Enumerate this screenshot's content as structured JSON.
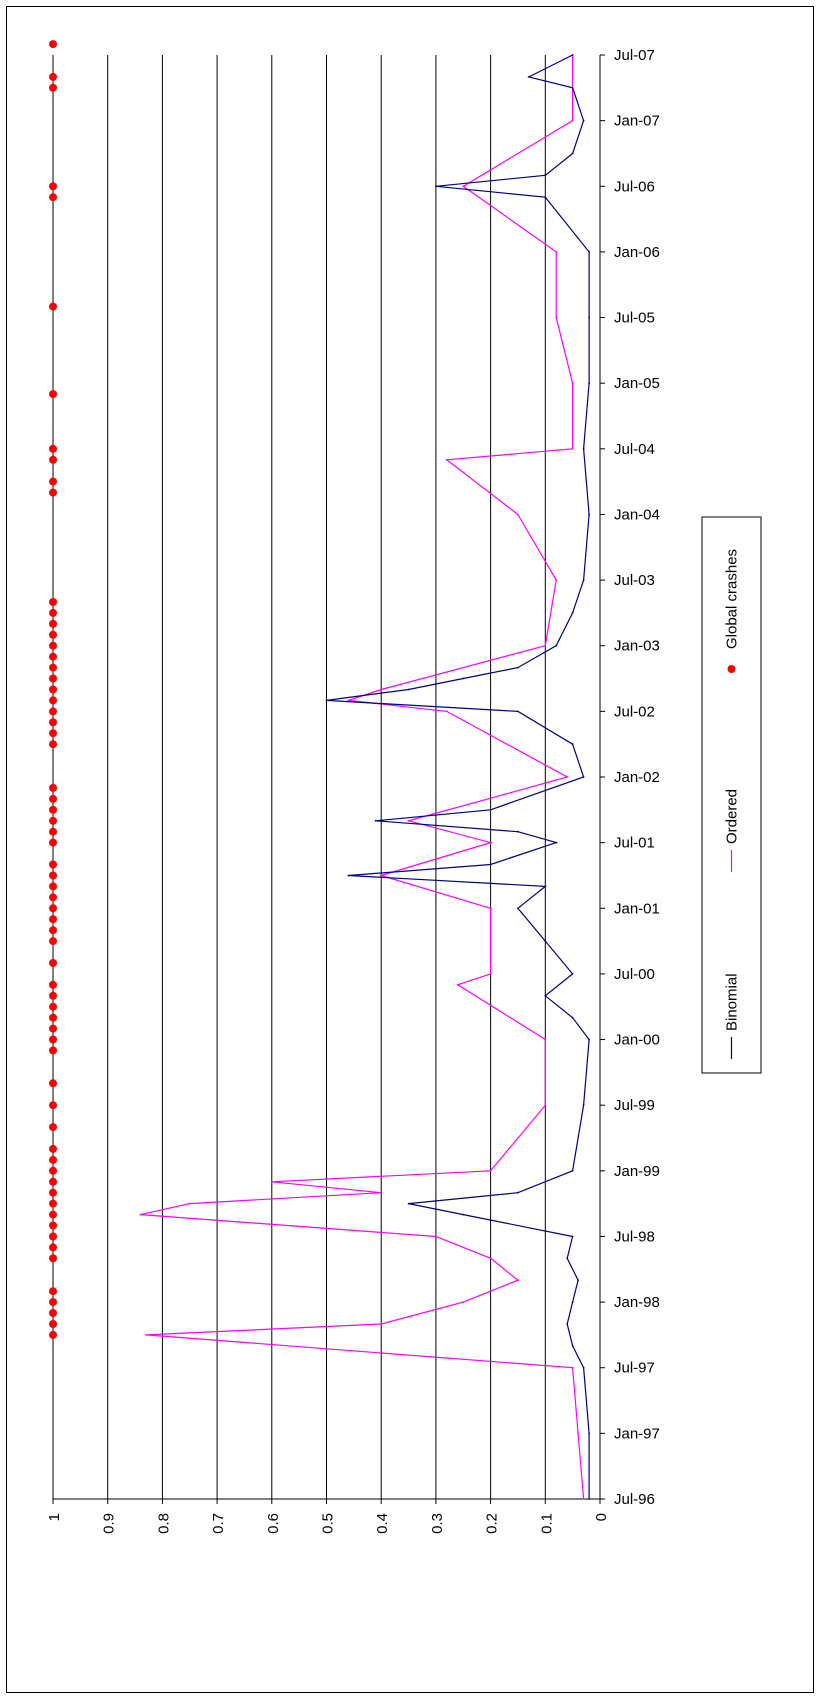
{
  "chart_data": {
    "type": "line",
    "orientation": "rotated-90",
    "title": "",
    "xlabel": "",
    "ylabel": "",
    "ylim": [
      0,
      1
    ],
    "y_ticks": [
      0,
      0.1,
      0.2,
      0.3,
      0.4,
      0.5,
      0.6,
      0.7,
      0.8,
      0.9,
      1
    ],
    "y_tick_labels": [
      "0",
      "0.1",
      "0.2",
      "0.3",
      "0.4",
      "0.5",
      "0.6",
      "0.7",
      "0.8",
      "0.9",
      "1"
    ],
    "x_tick_labels": [
      "Jul-96",
      "Jan-97",
      "Jul-97",
      "Jan-98",
      "Jul-98",
      "Jan-99",
      "Jul-99",
      "Jan-00",
      "Jul-00",
      "Jan-01",
      "Jul-01",
      "Jan-02",
      "Jul-02",
      "Jan-03",
      "Jul-03",
      "Jan-04",
      "Jul-04",
      "Jan-05",
      "Jul-05",
      "Jan-06",
      "Jul-06",
      "Jan-07",
      "Jul-07"
    ],
    "grid": true,
    "legend_position": "right",
    "colors": {
      "Binomial": "#000080",
      "Ordered": "#ff00ff",
      "Global crashes": "#ff0000"
    },
    "series": [
      {
        "name": "Binomial",
        "points": [
          [
            "Jul-96",
            0.02
          ],
          [
            "Jan-97",
            0.02
          ],
          [
            "Jul-97",
            0.03
          ],
          [
            "Sep-97",
            0.05
          ],
          [
            "Nov-97",
            0.06
          ],
          [
            "Jan-98",
            0.05
          ],
          [
            "Mar-98",
            0.04
          ],
          [
            "May-98",
            0.06
          ],
          [
            "Jul-98",
            0.05
          ],
          [
            "Sep-98",
            0.25
          ],
          [
            "Oct-98",
            0.35
          ],
          [
            "Nov-98",
            0.15
          ],
          [
            "Jan-99",
            0.05
          ],
          [
            "Jul-99",
            0.03
          ],
          [
            "Jan-00",
            0.02
          ],
          [
            "Mar-00",
            0.05
          ],
          [
            "May-00",
            0.1
          ],
          [
            "Jul-00",
            0.05
          ],
          [
            "Oct-00",
            0.1
          ],
          [
            "Jan-01",
            0.15
          ],
          [
            "Mar-01",
            0.1
          ],
          [
            "Apr-01",
            0.46
          ],
          [
            "May-01",
            0.2
          ],
          [
            "Jul-01",
            0.08
          ],
          [
            "Aug-01",
            0.15
          ],
          [
            "Sep-01",
            0.41
          ],
          [
            "Oct-01",
            0.2
          ],
          [
            "Jan-02",
            0.03
          ],
          [
            "Apr-02",
            0.05
          ],
          [
            "Jul-02",
            0.15
          ],
          [
            "Aug-02",
            0.5
          ],
          [
            "Sep-02",
            0.35
          ],
          [
            "Oct-02",
            0.25
          ],
          [
            "Nov-02",
            0.15
          ],
          [
            "Jan-03",
            0.08
          ],
          [
            "Apr-03",
            0.05
          ],
          [
            "Jul-03",
            0.03
          ],
          [
            "Jan-04",
            0.02
          ],
          [
            "Jul-04",
            0.03
          ],
          [
            "Jan-05",
            0.02
          ],
          [
            "Jul-05",
            0.02
          ],
          [
            "Jan-06",
            0.02
          ],
          [
            "Jun-06",
            0.1
          ],
          [
            "Jul-06",
            0.3
          ],
          [
            "Aug-06",
            0.1
          ],
          [
            "Oct-06",
            0.05
          ],
          [
            "Jan-07",
            0.03
          ],
          [
            "Apr-07",
            0.05
          ],
          [
            "May-07",
            0.13
          ],
          [
            "Jul-07",
            0.05
          ]
        ]
      },
      {
        "name": "Ordered",
        "points": [
          [
            "Jul-96",
            0.03
          ],
          [
            "Jan-97",
            0.04
          ],
          [
            "Jul-97",
            0.05
          ],
          [
            "Oct-97",
            0.83
          ],
          [
            "Nov-97",
            0.4
          ],
          [
            "Jan-98",
            0.25
          ],
          [
            "Mar-98",
            0.15
          ],
          [
            "May-98",
            0.2
          ],
          [
            "Jul-98",
            0.3
          ],
          [
            "Sep-98",
            0.84
          ],
          [
            "Oct-98",
            0.75
          ],
          [
            "Nov-98",
            0.4
          ],
          [
            "Dec-98",
            0.6
          ],
          [
            "Jan-99",
            0.2
          ],
          [
            "Jul-99",
            0.1
          ],
          [
            "Jan-00",
            0.1
          ],
          [
            "Jun-00",
            0.26
          ],
          [
            "Jul-00",
            0.2
          ],
          [
            "Jan-01",
            0.2
          ],
          [
            "Apr-01",
            0.4
          ],
          [
            "Jul-01",
            0.2
          ],
          [
            "Sep-01",
            0.35
          ],
          [
            "Jan-02",
            0.06
          ],
          [
            "Jul-02",
            0.28
          ],
          [
            "Aug-02",
            0.46
          ],
          [
            "Sep-02",
            0.4
          ],
          [
            "Jan-03",
            0.1
          ],
          [
            "Jul-03",
            0.08
          ],
          [
            "Jan-04",
            0.15
          ],
          [
            "Jun-04",
            0.28
          ],
          [
            "Jul-04",
            0.05
          ],
          [
            "Jan-05",
            0.05
          ],
          [
            "Jul-05",
            0.08
          ],
          [
            "Jan-06",
            0.08
          ],
          [
            "Jul-06",
            0.25
          ],
          [
            "Jan-07",
            0.05
          ],
          [
            "Jul-07",
            0.05
          ]
        ]
      },
      {
        "name": "Global crashes",
        "marker": "dot",
        "value": 1,
        "dates": [
          "Oct-97",
          "Nov-97",
          "Dec-97",
          "Jan-98",
          "Feb-98",
          "May-98",
          "Jun-98",
          "Jul-98",
          "Aug-98",
          "Sep-98",
          "Oct-98",
          "Nov-98",
          "Dec-98",
          "Jan-99",
          "Feb-99",
          "Mar-99",
          "May-99",
          "Jul-99",
          "Sep-99",
          "Dec-99",
          "Jan-00",
          "Feb-00",
          "Mar-00",
          "Apr-00",
          "May-00",
          "Jun-00",
          "Aug-00",
          "Oct-00",
          "Nov-00",
          "Dec-00",
          "Jan-01",
          "Feb-01",
          "Mar-01",
          "Apr-01",
          "May-01",
          "Jul-01",
          "Aug-01",
          "Sep-01",
          "Oct-01",
          "Nov-01",
          "Dec-01",
          "Apr-02",
          "May-02",
          "Jun-02",
          "Jul-02",
          "Aug-02",
          "Sep-02",
          "Oct-02",
          "Nov-02",
          "Dec-02",
          "Jan-03",
          "Feb-03",
          "Mar-03",
          "Apr-03",
          "May-03",
          "Mar-04",
          "Apr-04",
          "Jun-04",
          "Jul-04",
          "Dec-04",
          "Aug-05",
          "Jun-06",
          "Jul-06",
          "Apr-07",
          "May-07",
          "Aug-07"
        ]
      }
    ]
  }
}
